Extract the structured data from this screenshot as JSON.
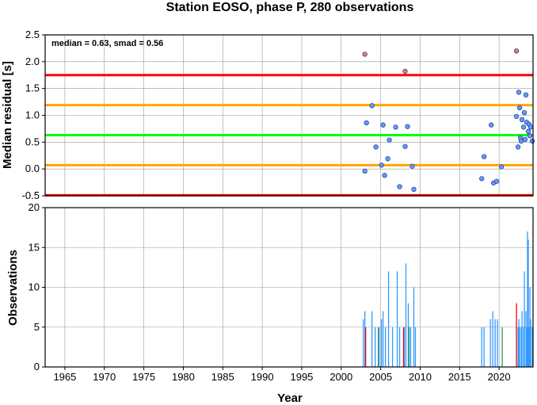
{
  "chart_data": [
    {
      "type": "scatter",
      "title": "Station EOSO, phase P, 280 observations",
      "ylabel": "Median residual [s]",
      "annotation": "median = 0.63, smad = 0.56",
      "xlim": [
        1962.5,
        2024.3
      ],
      "ylim": [
        -0.5,
        2.5
      ],
      "yticks": [
        "-0.5",
        "0.0",
        "0.5",
        "1.0",
        "1.5",
        "2.0",
        "2.5"
      ],
      "grid": true,
      "reference_lines": [
        {
          "value": 1.75,
          "color": "#ff0000"
        },
        {
          "value": 1.19,
          "color": "#ffa500"
        },
        {
          "value": 0.63,
          "color": "#00ff00"
        },
        {
          "value": 0.07,
          "color": "#ffa500"
        },
        {
          "value": -0.49,
          "color": "#ff0000"
        }
      ],
      "series": [
        {
          "color": "#6699ff",
          "points": [
            [
              2003.0,
              -0.04
            ],
            [
              2003.2,
              0.86
            ],
            [
              2003.9,
              1.18
            ],
            [
              2004.4,
              0.41
            ],
            [
              2005.1,
              0.07
            ],
            [
              2005.3,
              0.82
            ],
            [
              2005.5,
              -0.12
            ],
            [
              2005.9,
              0.19
            ],
            [
              2006.1,
              0.54
            ],
            [
              2006.9,
              0.78
            ],
            [
              2007.4,
              -0.33
            ],
            [
              2008.1,
              0.42
            ],
            [
              2008.4,
              0.79
            ],
            [
              2009.0,
              0.05
            ],
            [
              2009.2,
              -0.38
            ],
            [
              2017.8,
              -0.18
            ],
            [
              2018.1,
              0.23
            ],
            [
              2019.0,
              0.82
            ],
            [
              2019.3,
              -0.26
            ],
            [
              2019.7,
              -0.23
            ],
            [
              2020.3,
              0.04
            ],
            [
              2022.2,
              0.98
            ],
            [
              2022.4,
              0.41
            ],
            [
              2022.5,
              1.43
            ],
            [
              2022.6,
              1.14
            ],
            [
              2022.7,
              0.58
            ],
            [
              2022.8,
              0.52
            ],
            [
              2022.9,
              0.92
            ],
            [
              2023.1,
              0.78
            ],
            [
              2023.2,
              1.05
            ],
            [
              2023.3,
              0.55
            ],
            [
              2023.4,
              1.38
            ],
            [
              2023.5,
              0.87
            ],
            [
              2023.7,
              0.7
            ],
            [
              2023.8,
              0.83
            ],
            [
              2024.0,
              0.78
            ],
            [
              2024.2,
              0.52
            ],
            [
              2023.9,
              0.62
            ]
          ]
        },
        {
          "color": "#ff7070",
          "points": [
            [
              2003.0,
              2.14
            ],
            [
              2008.1,
              1.82
            ],
            [
              2022.2,
              2.2
            ]
          ]
        }
      ]
    },
    {
      "type": "bar",
      "xlabel": "Year",
      "ylabel": "Observations",
      "xlim": [
        1962.5,
        2024.3
      ],
      "ylim": [
        0,
        20
      ],
      "yticks": [
        "0",
        "5",
        "10",
        "15",
        "20"
      ],
      "xticks": [
        "1965",
        "1970",
        "1975",
        "1980",
        "1985",
        "1990",
        "1995",
        "2000",
        "2005",
        "2010",
        "2015",
        "2020"
      ],
      "grid": true,
      "series": [
        {
          "color": "#3399ff",
          "bars": [
            [
              2002.8,
              6
            ],
            [
              2003.0,
              7
            ],
            [
              2003.9,
              7
            ],
            [
              2004.3,
              5
            ],
            [
              2004.8,
              5
            ],
            [
              2005.1,
              6
            ],
            [
              2005.3,
              7
            ],
            [
              2005.6,
              5
            ],
            [
              2006.0,
              12
            ],
            [
              2006.5,
              5
            ],
            [
              2007.1,
              12
            ],
            [
              2007.4,
              5
            ],
            [
              2008.0,
              5
            ],
            [
              2008.2,
              13
            ],
            [
              2008.5,
              8
            ],
            [
              2008.8,
              5
            ],
            [
              2009.2,
              10
            ],
            [
              2009.4,
              5
            ],
            [
              2017.8,
              5
            ],
            [
              2018.1,
              5
            ],
            [
              2018.9,
              6
            ],
            [
              2019.2,
              7
            ],
            [
              2019.5,
              6
            ],
            [
              2019.8,
              6
            ],
            [
              2022.4,
              5
            ],
            [
              2022.5,
              6
            ],
            [
              2022.6,
              5
            ],
            [
              2022.8,
              5
            ],
            [
              2022.9,
              7
            ],
            [
              2023.1,
              5
            ],
            [
              2023.2,
              12
            ],
            [
              2023.4,
              7
            ],
            [
              2023.5,
              5
            ],
            [
              2023.6,
              17
            ],
            [
              2023.7,
              16
            ],
            [
              2023.8,
              5
            ],
            [
              2023.9,
              10
            ],
            [
              2024.0,
              6
            ],
            [
              2024.2,
              5
            ]
          ]
        },
        {
          "color": "#ff0000",
          "bars": [
            [
              2003.1,
              5
            ],
            [
              2007.9,
              5
            ],
            [
              2022.2,
              8
            ]
          ]
        },
        {
          "color": "#339966",
          "bars": [
            [
              2004.7,
              5
            ],
            [
              2008.6,
              5
            ],
            [
              2020.4,
              5
            ]
          ]
        }
      ]
    }
  ]
}
